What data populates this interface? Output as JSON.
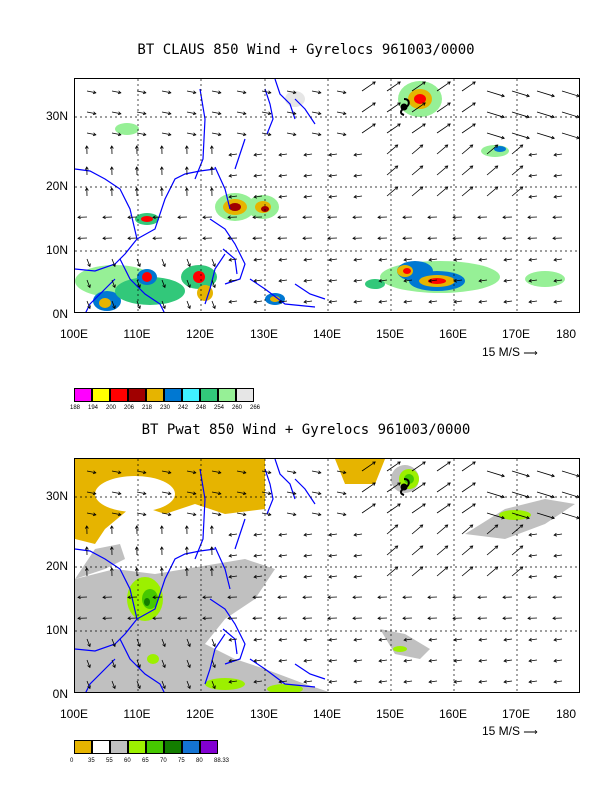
{
  "panel1": {
    "title": "BT CLAUS 850 Wind + Gyrelocs 961003/0000",
    "vector_ref": "15 M/S",
    "legend_colors": [
      "#ff00ff",
      "#ffff00",
      "#ff0000",
      "#a00000",
      "#e6b400",
      "#0078d2",
      "#40f0ff",
      "#32c87a",
      "#96f096",
      "#e6e6e6"
    ],
    "legend_labels": [
      "188",
      "194",
      "200",
      "206",
      "218",
      "230",
      "242",
      "248",
      "254",
      "260",
      "266"
    ]
  },
  "panel2": {
    "title": "BT Pwat 850 Wind + Gyrelocs 961003/0000",
    "vector_ref": "15 M/S",
    "legend_colors": [
      "#e6b400",
      "#ffffff",
      "#c0c0c0",
      "#9cf000",
      "#46c800",
      "#137d00",
      "#1473d2",
      "#8200d2"
    ],
    "legend_labels": [
      "0",
      "35",
      "55",
      "60",
      "65",
      "70",
      "75",
      "80",
      "88.33"
    ]
  },
  "lat_labels": [
    "30N",
    "20N",
    "10N",
    "0N"
  ],
  "lon_labels": [
    "100E",
    "110E",
    "120E",
    "130E",
    "140E",
    "150E",
    "160E",
    "170E",
    "180"
  ]
}
